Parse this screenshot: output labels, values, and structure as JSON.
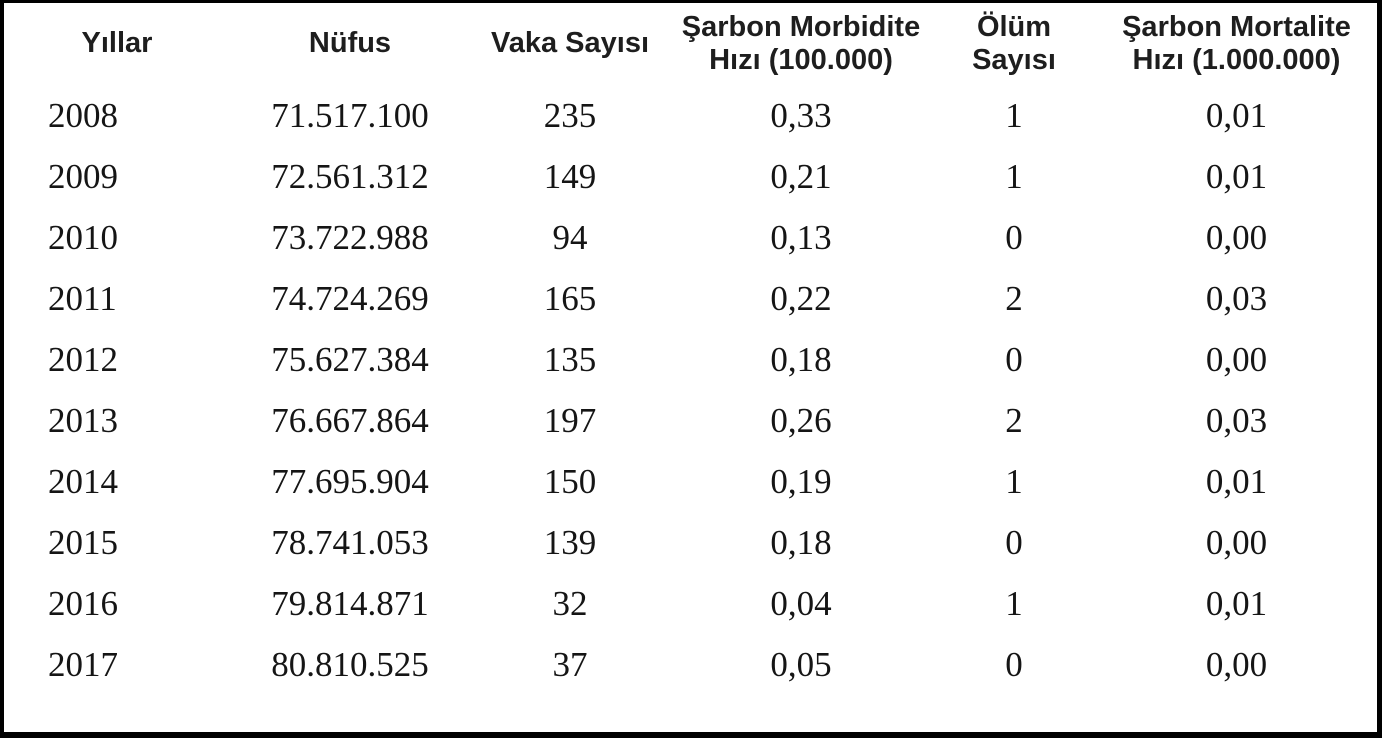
{
  "table": {
    "columns": [
      {
        "label": "Yıllar"
      },
      {
        "label": "Nüfus"
      },
      {
        "label": "Vaka Sayısı"
      },
      {
        "label": "Şarbon Morbidite",
        "label2": "Hızı (100.000)"
      },
      {
        "label": "Ölüm Sayısı"
      },
      {
        "label": "Şarbon Mortalite",
        "label2": "Hızı (1.000.000)"
      }
    ],
    "rows": [
      [
        "2008",
        "71.517.100",
        "235",
        "0,33",
        "1",
        "0,01"
      ],
      [
        "2009",
        "72.561.312",
        "149",
        "0,21",
        "1",
        "0,01"
      ],
      [
        "2010",
        "73.722.988",
        "94",
        "0,13",
        "0",
        "0,00"
      ],
      [
        "2011",
        "74.724.269",
        "165",
        "0,22",
        "2",
        "0,03"
      ],
      [
        "2012",
        "75.627.384",
        "135",
        "0,18",
        "0",
        "0,00"
      ],
      [
        "2013",
        "76.667.864",
        "197",
        "0,26",
        "2",
        "0,03"
      ],
      [
        "2014",
        "77.695.904",
        "150",
        "0,19",
        "1",
        "0,01"
      ],
      [
        "2015",
        "78.741.053",
        "139",
        "0,18",
        "0",
        "0,00"
      ],
      [
        "2016",
        "79.814.871",
        "32",
        "0,04",
        "1",
        "0,01"
      ],
      [
        "2017",
        "80.810.525",
        "37",
        "0,05",
        "0",
        "0,00"
      ]
    ]
  },
  "chart_data": {
    "type": "table",
    "columns": [
      "Yıllar",
      "Nüfus",
      "Vaka Sayısı",
      "Şarbon Morbidite Hızı (100.000)",
      "Ölüm Sayısı",
      "Şarbon Mortalite Hızı (1.000.000)"
    ],
    "years": [
      2008,
      2009,
      2010,
      2011,
      2012,
      2013,
      2014,
      2015,
      2016,
      2017
    ],
    "population": [
      71517100,
      72561312,
      73722988,
      74724269,
      75627384,
      76667864,
      77695904,
      78741053,
      79814871,
      80810525
    ],
    "cases": [
      235,
      149,
      94,
      165,
      135,
      197,
      150,
      139,
      32,
      37
    ],
    "anthrax_morbidity_rate_per_100000": [
      0.33,
      0.21,
      0.13,
      0.22,
      0.18,
      0.26,
      0.19,
      0.18,
      0.04,
      0.05
    ],
    "deaths": [
      1,
      1,
      0,
      2,
      0,
      2,
      1,
      0,
      1,
      0
    ],
    "anthrax_mortality_rate_per_1000000": [
      0.01,
      0.01,
      0.0,
      0.03,
      0.0,
      0.03,
      0.01,
      0.0,
      0.01,
      0.0
    ],
    "frame_border_color": "#000000",
    "text_color": "#151515",
    "background_color": "#ffffff",
    "grid": false,
    "legend": false
  }
}
